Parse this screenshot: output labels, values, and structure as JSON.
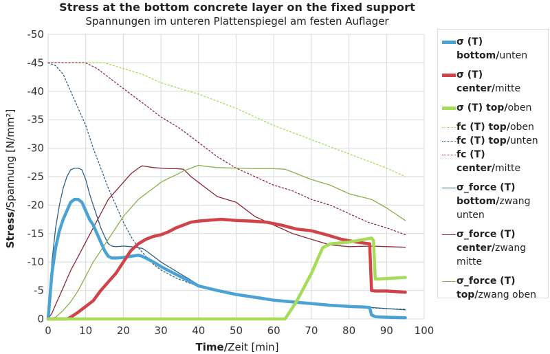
{
  "chart_data": {
    "type": "line",
    "title": "Stress at the bottom concrete layer on the fixed support",
    "subtitle": "Spannungen im unteren Plattenspiegel am festen Auflager",
    "xlabel": {
      "bold": "Time/",
      "rest": "Zeit [min]"
    },
    "ylabel": {
      "bold": "Stress/",
      "rest": "Spannung [N/mm²]"
    },
    "xlim": [
      0,
      100
    ],
    "ylim": [
      0,
      -50
    ],
    "xticks": [
      "0",
      "10",
      "20",
      "30",
      "40",
      "50",
      "60",
      "70",
      "80",
      "90",
      "100"
    ],
    "yticks": [
      "0",
      "-5",
      "-10",
      "-15",
      "-20",
      "-25",
      "-30",
      "-35",
      "-40",
      "-45",
      "-50"
    ],
    "grid": true,
    "legend_position": "right",
    "series": [
      {
        "name_bold": "σ (T) bottom/",
        "name_rest": "unten",
        "color": "#4aa3d4",
        "width": 4.5,
        "dash": "",
        "x": [
          0,
          1,
          2,
          3,
          4,
          5,
          6,
          7,
          8,
          9,
          10,
          11,
          12,
          13,
          14,
          15,
          16,
          17,
          18,
          20,
          22,
          24,
          25,
          26,
          28,
          30,
          32,
          35,
          38,
          40,
          45,
          50,
          55,
          60,
          65,
          70,
          75,
          80,
          84,
          85.5,
          86,
          87,
          90,
          95
        ],
        "y": [
          0,
          -8,
          -12.5,
          -15.5,
          -17.5,
          -19,
          -20.5,
          -21,
          -21,
          -20.5,
          -19,
          -17.5,
          -16.5,
          -15,
          -13.5,
          -12,
          -11,
          -10.7,
          -10.7,
          -10.8,
          -11,
          -11.2,
          -11,
          -10.7,
          -10,
          -9.2,
          -8.5,
          -7.5,
          -6.5,
          -5.8,
          -5,
          -4.3,
          -3.8,
          -3.3,
          -3,
          -2.7,
          -2.4,
          -2.2,
          -2.1,
          -2.0,
          -0.7,
          -0.4,
          -0.3,
          -0.2
        ]
      },
      {
        "name_bold": "σ (T) center/",
        "name_rest": "mitte",
        "color": "#d0434a",
        "width": 4.5,
        "dash": "",
        "x": [
          0,
          2,
          4,
          5,
          6,
          8,
          10,
          12,
          14,
          16,
          18,
          20,
          22,
          24,
          26,
          28,
          30,
          32,
          34,
          36,
          38,
          40,
          42,
          44,
          46,
          48,
          50,
          54,
          58,
          62,
          66,
          70,
          74,
          78,
          82,
          85.5,
          86,
          87,
          90,
          95
        ],
        "y": [
          0,
          0,
          0,
          0,
          -0.3,
          -1.2,
          -2.2,
          -3.2,
          -5,
          -6.5,
          -8,
          -10,
          -12,
          -13.2,
          -14,
          -14.5,
          -14.8,
          -15.3,
          -16,
          -16.5,
          -17,
          -17.2,
          -17.3,
          -17.4,
          -17.5,
          -17.4,
          -17.3,
          -17.2,
          -17.0,
          -16.5,
          -15.8,
          -15.5,
          -14.8,
          -14,
          -13.5,
          -13.2,
          -5,
          -4.9,
          -4.9,
          -4.7
        ]
      },
      {
        "name_bold": "σ (T) top/",
        "name_rest": "oben",
        "color": "#a6dc5a",
        "width": 4.5,
        "dash": "",
        "x": [
          0,
          10,
          20,
          30,
          40,
          50,
          60,
          63,
          66,
          70,
          73,
          75,
          80,
          86,
          86.5,
          87,
          90,
          95
        ],
        "y": [
          0,
          0,
          0,
          0,
          0,
          0,
          0,
          0,
          -3,
          -8,
          -12.5,
          -13.2,
          -13.5,
          -14.2,
          -13.8,
          -7,
          -7.1,
          -7.3
        ]
      },
      {
        "name_bold": "fc (T) top/",
        "name_rest": "oben",
        "color": "#a6dc5a",
        "width": 1.3,
        "dash": "2,3",
        "x": [
          0,
          5,
          10,
          15,
          20,
          25,
          30,
          40,
          50,
          60,
          70,
          80,
          90,
          95
        ],
        "y": [
          -45,
          -45,
          -45,
          -45,
          -44,
          -43,
          -41.5,
          -39.5,
          -37,
          -34,
          -31.5,
          -29,
          -26.5,
          -25
        ]
      },
      {
        "name_bold": "fc (T) top/",
        "name_rest": "unten",
        "color": "#2f5f87",
        "width": 1.3,
        "dash": "2,3",
        "x": [
          0,
          2,
          4,
          6,
          8,
          10,
          12,
          14,
          16,
          18,
          20,
          22,
          24,
          26,
          28,
          30,
          34,
          38,
          40,
          45,
          50,
          55,
          60,
          65,
          70,
          75,
          80,
          85,
          90,
          95
        ],
        "y": [
          -45,
          -44.5,
          -43,
          -40,
          -37,
          -34,
          -30,
          -26.5,
          -23,
          -20,
          -17,
          -14.5,
          -12.5,
          -11,
          -9.6,
          -8.6,
          -7.2,
          -6.2,
          -5.8,
          -5.1,
          -4.4,
          -3.9,
          -3.4,
          -3.0,
          -2.7,
          -2.4,
          -2.1,
          -2.0,
          -1.8,
          -1.7
        ]
      },
      {
        "name_bold": "fc (T) center/",
        "name_rest": "mitte",
        "color": "#8b2635",
        "width": 1.3,
        "dash": "2,3",
        "x": [
          0,
          5,
          10,
          13,
          15,
          20,
          25,
          30,
          35,
          40,
          45,
          50,
          55,
          60,
          65,
          70,
          75,
          80,
          85,
          90,
          95
        ],
        "y": [
          -45,
          -45,
          -45,
          -44,
          -43,
          -40.5,
          -38,
          -35.5,
          -33.5,
          -31,
          -28.5,
          -26.5,
          -25,
          -23.5,
          -22.5,
          -21,
          -20,
          -18.5,
          -17,
          -16,
          -14.8
        ]
      },
      {
        "name_bold": "σ_force (T) bottom/",
        "name_rest": "zwang unten",
        "color": "#2f5f87",
        "width": 1.3,
        "dash": "",
        "x": [
          0,
          1,
          2,
          3,
          4,
          5,
          6,
          7,
          8,
          9,
          10,
          11,
          12,
          13,
          14,
          15,
          16,
          17,
          18,
          20,
          22,
          24,
          25,
          26,
          28,
          30,
          35,
          40,
          45,
          50,
          60,
          70,
          80,
          86,
          95
        ],
        "y": [
          0,
          -10,
          -16,
          -20,
          -23,
          -25,
          -26.2,
          -26.5,
          -26.5,
          -26.2,
          -24.5,
          -22,
          -20,
          -18,
          -16,
          -14.5,
          -13.2,
          -12.8,
          -12.7,
          -12.8,
          -12.7,
          -12.5,
          -12.4,
          -12,
          -11,
          -10,
          -8,
          -6,
          -5,
          -4.3,
          -3.3,
          -2.7,
          -2.3,
          -2.0,
          -1.6
        ]
      },
      {
        "name_bold": "σ_force (T) center/",
        "name_rest": "zwang mitte",
        "color": "#8b2635",
        "width": 1.3,
        "dash": "",
        "x": [
          0,
          1,
          2,
          3,
          4,
          5,
          6,
          8,
          10,
          12,
          14,
          16,
          18,
          20,
          22,
          24,
          25,
          26,
          28,
          30,
          32,
          34,
          36,
          38,
          40,
          42,
          45,
          50,
          55,
          60,
          65,
          70,
          75,
          80,
          86,
          90,
          95
        ],
        "y": [
          0,
          -1,
          -2.5,
          -4,
          -5.5,
          -7,
          -8.5,
          -11,
          -13.5,
          -16,
          -18.5,
          -21,
          -22.5,
          -24,
          -25.5,
          -26.5,
          -26.9,
          -26.8,
          -26.6,
          -26.5,
          -26.4,
          -26.4,
          -26.3,
          -25,
          -24,
          -23,
          -21.5,
          -20.5,
          -18,
          -16.5,
          -15,
          -14,
          -13,
          -12.7,
          -12.8,
          -12.7,
          -12.6
        ]
      },
      {
        "name_bold": "σ_force (T) top/",
        "name_rest": "zwang oben",
        "color": "#8ab04a",
        "width": 1.3,
        "dash": "",
        "x": [
          0,
          2,
          4,
          6,
          8,
          10,
          12,
          14,
          16,
          18,
          20,
          22,
          24,
          26,
          28,
          30,
          32,
          34,
          36,
          38,
          40,
          42,
          45,
          50,
          55,
          60,
          63,
          65,
          70,
          75,
          80,
          86,
          90,
          95
        ],
        "y": [
          0,
          -0.3,
          -1.5,
          -3,
          -5,
          -7.5,
          -10,
          -12,
          -14,
          -16,
          -18,
          -19.5,
          -21,
          -22,
          -23,
          -24,
          -24.7,
          -25.3,
          -26,
          -26.5,
          -27,
          -26.8,
          -26.6,
          -26.5,
          -26.4,
          -26.4,
          -26.3,
          -25.8,
          -24.5,
          -23.5,
          -22,
          -21,
          -19.5,
          -17.3
        ]
      }
    ]
  }
}
